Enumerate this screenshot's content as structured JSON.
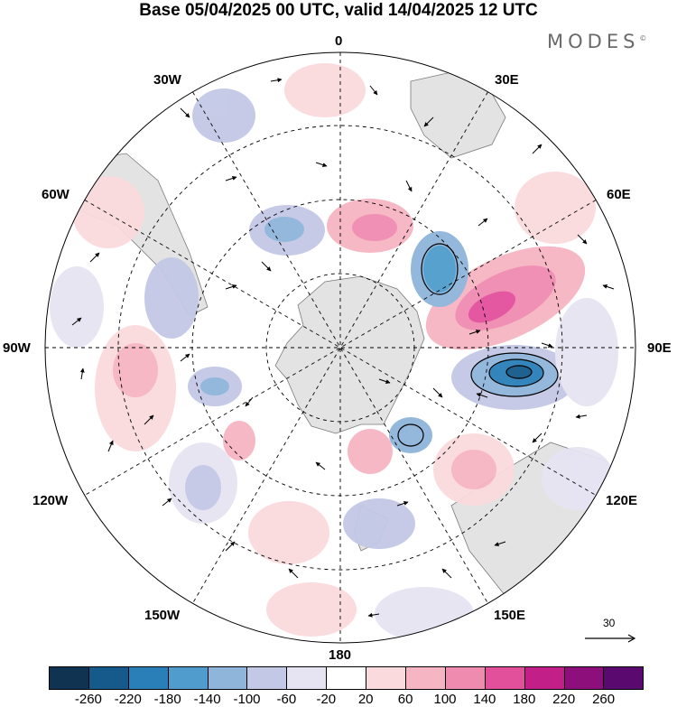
{
  "title": "Base 05/04/2025 00 UTC, valid 14/04/2025 12 UTC",
  "brand": "MODES",
  "brand_mark": "©",
  "longitudes": {
    "lon_0": "0",
    "lon_30e": "30E",
    "lon_60e": "60E",
    "lon_90e": "90E",
    "lon_120e": "120E",
    "lon_150e": "150E",
    "lon_180": "180",
    "lon_150w": "150W",
    "lon_120w": "120W",
    "lon_90w": "90W",
    "lon_60w": "60W",
    "lon_30w": "30W"
  },
  "reference_vector": {
    "label": "30"
  },
  "colorbar": {
    "ticks": [
      "-260",
      "-220",
      "-180",
      "-140",
      "-100",
      "-60",
      "-20",
      "20",
      "60",
      "100",
      "140",
      "180",
      "220",
      "260"
    ],
    "colors": [
      "#0f3350",
      "#155a8a",
      "#2a7fb8",
      "#4f9ccd",
      "#8fb5da",
      "#c3c8e6",
      "#e6e4f2",
      "#ffffff",
      "#fadadd",
      "#f6b5c2",
      "#f08bb0",
      "#e2509c",
      "#c21f89",
      "#8d0f7b",
      "#5a0a6e"
    ]
  },
  "anomalies": [
    {
      "name": "high-indian-ocean-ne",
      "kind": "positive",
      "strength": 0.55
    },
    {
      "name": "low-south-of-australia-west",
      "kind": "negative",
      "strength": 0.95
    },
    {
      "name": "low-southern-ocean-60e",
      "kind": "negative",
      "strength": 0.75
    },
    {
      "name": "high-south-atlantic-30e",
      "kind": "positive",
      "strength": 0.55
    },
    {
      "name": "low-weddell-sea",
      "kind": "negative",
      "strength": 0.5
    },
    {
      "name": "high-east-pacific",
      "kind": "positive",
      "strength": 0.45
    },
    {
      "name": "high-south-pacific",
      "kind": "positive",
      "strength": 0.3
    }
  ]
}
